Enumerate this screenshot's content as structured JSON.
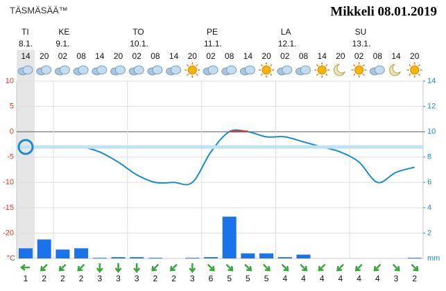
{
  "chart_data": {
    "type": "line",
    "brand": "TÄSMÄSÄÄ™",
    "title": "Mikkeli 08.01.2019",
    "days": [
      {
        "name": "TI",
        "date": "8.1."
      },
      {
        "name": "KE",
        "date": "9.1."
      },
      {
        "name": "TO",
        "date": "10.1."
      },
      {
        "name": "PE",
        "date": "11.1."
      },
      {
        "name": "LA",
        "date": "12.1."
      },
      {
        "name": "SU",
        "date": "13.1."
      }
    ],
    "categories": [
      "14",
      "20",
      "02",
      "08",
      "14",
      "20",
      "02",
      "08",
      "14",
      "20",
      "02",
      "08",
      "14",
      "20",
      "02",
      "08",
      "14",
      "20",
      "02",
      "08",
      "14",
      "20"
    ],
    "series": [
      {
        "name": "temperature",
        "color": "#1a8ad4",
        "values": [
          -3,
          -3,
          -3,
          -3,
          -4,
          -6,
          -8.5,
          -10,
          -10,
          -10,
          -4,
          0,
          0,
          -1,
          -1,
          -2,
          -3,
          -4,
          -6,
          -10,
          -8,
          -7
        ]
      },
      {
        "name": "precipitation",
        "color": "#1a73e8",
        "axis": "y2",
        "values": [
          0.8,
          1.5,
          0.7,
          0.8,
          0.05,
          0.1,
          0.1,
          0.05,
          0,
          0.05,
          0.1,
          3.3,
          0.4,
          0.4,
          0.1,
          0.3,
          0,
          0,
          0,
          0,
          0,
          0.05
        ]
      }
    ],
    "wind_speeds": [
      1,
      2,
      2,
      2,
      3,
      3,
      3,
      2,
      2,
      3,
      6,
      5,
      5,
      5,
      4,
      4,
      4,
      4,
      4,
      4,
      3,
      2
    ],
    "ylim": [
      -25,
      10
    ],
    "yticks": [
      10,
      5,
      0,
      -5,
      -10,
      -15,
      -20
    ],
    "y_unit": "°C",
    "y2lim": [
      0,
      14
    ],
    "y2ticks": [
      14,
      12,
      10,
      8,
      6,
      4,
      2
    ],
    "y2_unit": "mm",
    "current_temperature": -3
  }
}
